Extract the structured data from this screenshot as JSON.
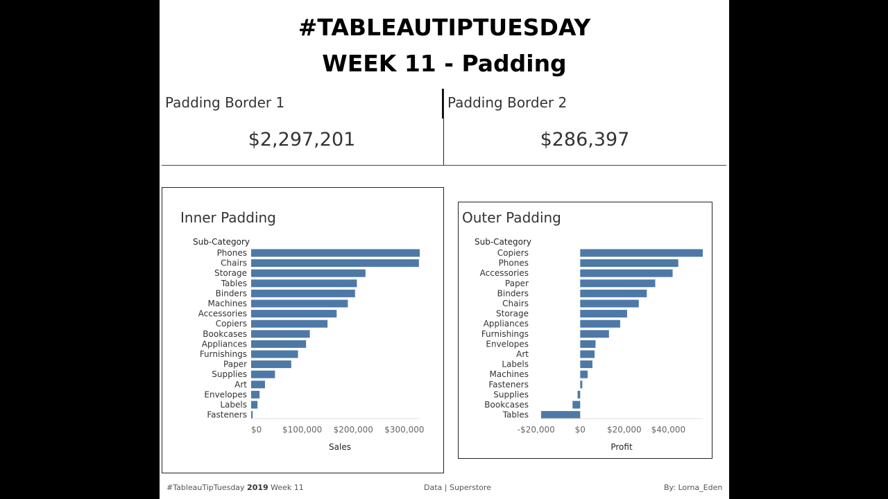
{
  "header": {
    "line1": "#TABLEAUTIPTUESDAY",
    "line2": "WEEK 11 - Padding"
  },
  "kpis": [
    {
      "label": "Padding Border 1",
      "value": "$2,297,201"
    },
    {
      "label": "Padding Border 2",
      "value": "$286,397"
    }
  ],
  "footer": {
    "left_prefix": "#TableauTipTuesday ",
    "left_year": "2019",
    "left_suffix": " Week 11",
    "center": "Data | Superstore",
    "right": "By: Lorna_Eden"
  },
  "colors": {
    "bar": "#4e79a7",
    "axis_text": "#666666",
    "label_text": "#333333"
  },
  "chart_data": [
    {
      "type": "bar",
      "orientation": "horizontal",
      "title": "Inner Padding",
      "category_header": "Sub-Category",
      "xlabel": "Sales",
      "xlim": [
        0,
        330000
      ],
      "ticks": [
        0,
        100000,
        200000,
        300000
      ],
      "tick_labels": [
        "$0",
        "$100,000",
        "$200,000",
        "$300,000"
      ],
      "categories": [
        "Phones",
        "Chairs",
        "Storage",
        "Tables",
        "Binders",
        "Machines",
        "Accessories",
        "Copiers",
        "Bookcases",
        "Appliances",
        "Furnishings",
        "Paper",
        "Supplies",
        "Art",
        "Envelopes",
        "Labels",
        "Fasteners"
      ],
      "values": [
        330007,
        328449,
        223844,
        206966,
        203413,
        189239,
        167380,
        149528,
        114880,
        107532,
        91705,
        78479,
        46674,
        27119,
        16476,
        12486,
        3024
      ]
    },
    {
      "type": "bar",
      "orientation": "horizontal",
      "title": "Outer Padding",
      "category_header": "Sub-Category",
      "xlabel": "Profit",
      "xlim": [
        -17725,
        55618
      ],
      "ticks": [
        -20000,
        0,
        20000,
        40000
      ],
      "tick_labels": [
        "-$20,000",
        "$0",
        "$20,000",
        "$40,000"
      ],
      "categories": [
        "Copiers",
        "Phones",
        "Accessories",
        "Paper",
        "Binders",
        "Chairs",
        "Storage",
        "Appliances",
        "Furnishings",
        "Envelopes",
        "Art",
        "Labels",
        "Machines",
        "Fasteners",
        "Supplies",
        "Bookcases",
        "Tables"
      ],
      "values": [
        55618,
        44516,
        41937,
        34054,
        30222,
        26590,
        21279,
        18138,
        13059,
        6964,
        6528,
        5546,
        3385,
        950,
        -1189,
        -3473,
        -17725
      ]
    }
  ]
}
